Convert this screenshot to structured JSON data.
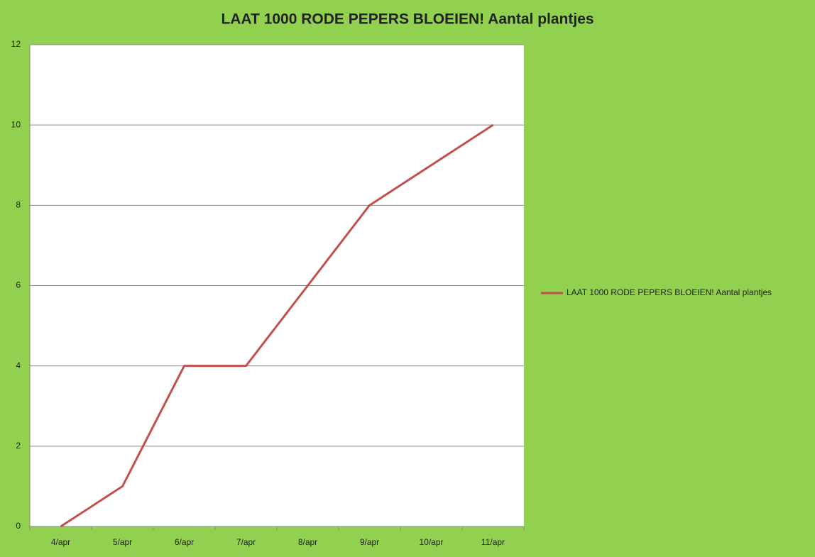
{
  "chart_data": {
    "type": "line",
    "title": "LAAT 1000 RODE PEPERS BLOEIEN! Aantal plantjes",
    "categories": [
      "4/apr",
      "5/apr",
      "6/apr",
      "7/apr",
      "8/apr",
      "9/apr",
      "10/apr",
      "11/apr"
    ],
    "series": [
      {
        "name": "LAAT 1000 RODE PEPERS BLOEIEN! Aantal plantjes",
        "color": "#c0504d",
        "values": [
          0,
          1,
          4,
          4,
          6,
          8,
          9,
          10
        ]
      }
    ],
    "ylim": [
      0,
      12
    ],
    "yticks": [
      0,
      2,
      4,
      6,
      8,
      10,
      12
    ],
    "grid": true,
    "legend": "right"
  }
}
